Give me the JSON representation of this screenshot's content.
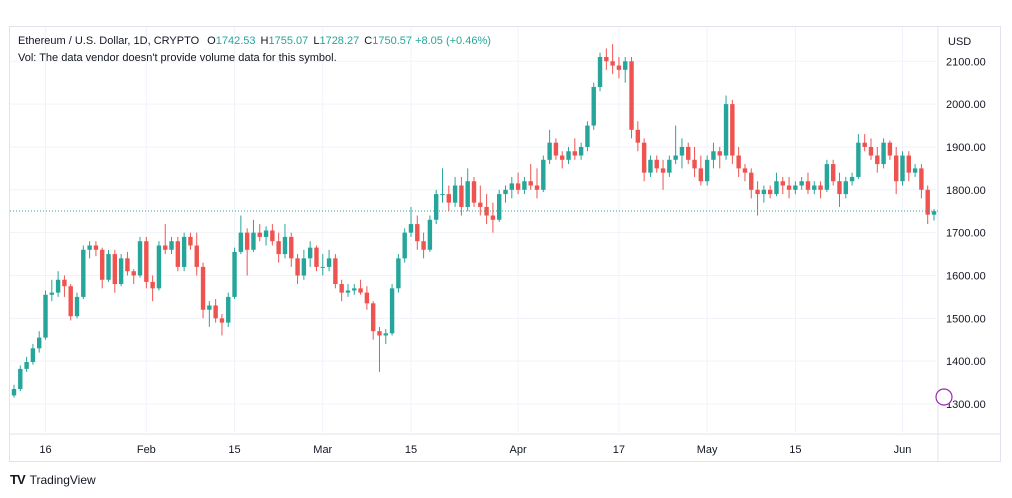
{
  "legend": {
    "symbol": "Ethereum / U.S. Dollar, 1D, CRYPTO",
    "o_key": "O",
    "o_val": "1742.53",
    "h_key": "H",
    "h_val": "1755.07",
    "l_key": "L",
    "l_val": "1728.27",
    "c_key": "C",
    "c_val": "1750.57",
    "change": "+8.05 (+0.46%)",
    "vol_text": "Vol: The data vendor doesn't provide volume data for this symbol."
  },
  "branding": {
    "name": "TradingView",
    "mark": "TV"
  },
  "colors": {
    "up": "#26a69a",
    "down": "#ef5350",
    "grid": "#f0f3fa",
    "axis_text": "#131722",
    "price_line": "#26a69a"
  },
  "chart_data": {
    "type": "candlestick",
    "currency_label": "USD",
    "y_range": [
      1230,
      2180
    ],
    "y_ticks": [
      1300,
      1400,
      1500,
      1600,
      1700,
      1800,
      1900,
      2000,
      2100
    ],
    "y_tick_labels": [
      "1300.00",
      "1400.00",
      "1500.00",
      "1600.00",
      "1700.00",
      "1800.00",
      "1900.00",
      "2000.00",
      "2100.00"
    ],
    "x_ticks": [
      {
        "label": "16",
        "bar": 5
      },
      {
        "label": "Feb",
        "bar": 21
      },
      {
        "label": "15",
        "bar": 35
      },
      {
        "label": "Mar",
        "bar": 49
      },
      {
        "label": "15",
        "bar": 63
      },
      {
        "label": "Apr",
        "bar": 80
      },
      {
        "label": "17",
        "bar": 96
      },
      {
        "label": "May",
        "bar": 110
      },
      {
        "label": "15",
        "bar": 124
      },
      {
        "label": "Jun",
        "bar": 141
      }
    ],
    "current_price": 1750.57,
    "ohlc": [
      [
        1320,
        1345,
        1315,
        1335
      ],
      [
        1335,
        1390,
        1330,
        1382
      ],
      [
        1382,
        1410,
        1375,
        1398
      ],
      [
        1398,
        1440,
        1392,
        1430
      ],
      [
        1430,
        1470,
        1420,
        1455
      ],
      [
        1455,
        1565,
        1450,
        1555
      ],
      [
        1555,
        1590,
        1540,
        1560
      ],
      [
        1560,
        1610,
        1550,
        1590
      ],
      [
        1590,
        1600,
        1550,
        1575
      ],
      [
        1575,
        1580,
        1495,
        1505
      ],
      [
        1505,
        1560,
        1500,
        1550
      ],
      [
        1550,
        1670,
        1545,
        1660
      ],
      [
        1660,
        1680,
        1640,
        1670
      ],
      [
        1670,
        1680,
        1645,
        1660
      ],
      [
        1660,
        1665,
        1570,
        1590
      ],
      [
        1590,
        1660,
        1585,
        1650
      ],
      [
        1650,
        1660,
        1560,
        1580
      ],
      [
        1580,
        1650,
        1575,
        1640
      ],
      [
        1640,
        1655,
        1600,
        1610
      ],
      [
        1610,
        1615,
        1580,
        1600
      ],
      [
        1600,
        1690,
        1595,
        1680
      ],
      [
        1680,
        1690,
        1570,
        1585
      ],
      [
        1585,
        1600,
        1540,
        1570
      ],
      [
        1570,
        1680,
        1565,
        1670
      ],
      [
        1670,
        1720,
        1650,
        1660
      ],
      [
        1660,
        1690,
        1650,
        1680
      ],
      [
        1680,
        1690,
        1610,
        1620
      ],
      [
        1620,
        1700,
        1610,
        1690
      ],
      [
        1690,
        1700,
        1660,
        1670
      ],
      [
        1670,
        1700,
        1600,
        1620
      ],
      [
        1620,
        1630,
        1500,
        1520
      ],
      [
        1520,
        1540,
        1480,
        1530
      ],
      [
        1530,
        1545,
        1490,
        1500
      ],
      [
        1500,
        1510,
        1460,
        1490
      ],
      [
        1490,
        1560,
        1480,
        1550
      ],
      [
        1550,
        1665,
        1545,
        1655
      ],
      [
        1655,
        1740,
        1650,
        1700
      ],
      [
        1700,
        1710,
        1600,
        1660
      ],
      [
        1660,
        1730,
        1655,
        1700
      ],
      [
        1700,
        1720,
        1680,
        1690
      ],
      [
        1690,
        1715,
        1670,
        1705
      ],
      [
        1705,
        1720,
        1670,
        1680
      ],
      [
        1680,
        1700,
        1630,
        1650
      ],
      [
        1650,
        1720,
        1640,
        1690
      ],
      [
        1690,
        1700,
        1620,
        1640
      ],
      [
        1640,
        1650,
        1580,
        1600
      ],
      [
        1600,
        1660,
        1590,
        1640
      ],
      [
        1640,
        1680,
        1620,
        1665
      ],
      [
        1665,
        1670,
        1610,
        1620
      ],
      [
        1620,
        1650,
        1600,
        1620
      ],
      [
        1620,
        1660,
        1610,
        1640
      ],
      [
        1640,
        1650,
        1570,
        1580
      ],
      [
        1580,
        1590,
        1540,
        1560
      ],
      [
        1560,
        1580,
        1550,
        1565
      ],
      [
        1565,
        1580,
        1555,
        1570
      ],
      [
        1570,
        1590,
        1555,
        1560
      ],
      [
        1560,
        1575,
        1520,
        1535
      ],
      [
        1535,
        1540,
        1450,
        1470
      ],
      [
        1470,
        1480,
        1375,
        1460
      ],
      [
        1460,
        1475,
        1440,
        1465
      ],
      [
        1465,
        1580,
        1460,
        1570
      ],
      [
        1570,
        1650,
        1560,
        1640
      ],
      [
        1640,
        1710,
        1630,
        1700
      ],
      [
        1700,
        1760,
        1690,
        1720
      ],
      [
        1720,
        1740,
        1660,
        1680
      ],
      [
        1680,
        1700,
        1640,
        1660
      ],
      [
        1660,
        1740,
        1655,
        1730
      ],
      [
        1730,
        1800,
        1720,
        1790
      ],
      [
        1790,
        1850,
        1770,
        1790
      ],
      [
        1790,
        1810,
        1750,
        1770
      ],
      [
        1770,
        1830,
        1760,
        1810
      ],
      [
        1810,
        1830,
        1740,
        1760
      ],
      [
        1760,
        1850,
        1750,
        1820
      ],
      [
        1820,
        1830,
        1760,
        1770
      ],
      [
        1770,
        1810,
        1740,
        1760
      ],
      [
        1760,
        1790,
        1720,
        1740
      ],
      [
        1740,
        1770,
        1700,
        1730
      ],
      [
        1730,
        1800,
        1725,
        1790
      ],
      [
        1790,
        1810,
        1770,
        1800
      ],
      [
        1800,
        1830,
        1780,
        1815
      ],
      [
        1815,
        1840,
        1790,
        1800
      ],
      [
        1800,
        1830,
        1790,
        1820
      ],
      [
        1820,
        1860,
        1800,
        1810
      ],
      [
        1810,
        1850,
        1780,
        1800
      ],
      [
        1800,
        1880,
        1795,
        1870
      ],
      [
        1870,
        1940,
        1860,
        1910
      ],
      [
        1910,
        1920,
        1870,
        1880
      ],
      [
        1880,
        1890,
        1850,
        1870
      ],
      [
        1870,
        1900,
        1860,
        1890
      ],
      [
        1890,
        1920,
        1870,
        1880
      ],
      [
        1880,
        1910,
        1870,
        1900
      ],
      [
        1900,
        1960,
        1890,
        1950
      ],
      [
        1950,
        2050,
        1940,
        2040
      ],
      [
        2040,
        2120,
        2030,
        2110
      ],
      [
        2110,
        2130,
        2080,
        2100
      ],
      [
        2100,
        2140,
        2070,
        2090
      ],
      [
        2090,
        2110,
        2060,
        2080
      ],
      [
        2080,
        2110,
        2050,
        2100
      ],
      [
        2100,
        2110,
        1920,
        1940
      ],
      [
        1940,
        1960,
        1890,
        1910
      ],
      [
        1910,
        1920,
        1820,
        1840
      ],
      [
        1840,
        1880,
        1830,
        1870
      ],
      [
        1870,
        1880,
        1840,
        1850
      ],
      [
        1850,
        1870,
        1800,
        1840
      ],
      [
        1840,
        1880,
        1830,
        1870
      ],
      [
        1870,
        1950,
        1860,
        1880
      ],
      [
        1880,
        1920,
        1850,
        1900
      ],
      [
        1900,
        1910,
        1860,
        1870
      ],
      [
        1870,
        1900,
        1830,
        1850
      ],
      [
        1850,
        1880,
        1810,
        1820
      ],
      [
        1820,
        1880,
        1810,
        1870
      ],
      [
        1870,
        1910,
        1850,
        1890
      ],
      [
        1890,
        1900,
        1850,
        1880
      ],
      [
        1880,
        2020,
        1870,
        2000
      ],
      [
        2000,
        2010,
        1860,
        1880
      ],
      [
        1880,
        1900,
        1830,
        1850
      ],
      [
        1850,
        1860,
        1820,
        1840
      ],
      [
        1840,
        1850,
        1780,
        1800
      ],
      [
        1800,
        1820,
        1740,
        1790
      ],
      [
        1790,
        1810,
        1770,
        1800
      ],
      [
        1800,
        1810,
        1780,
        1790
      ],
      [
        1790,
        1840,
        1785,
        1820
      ],
      [
        1820,
        1830,
        1790,
        1810
      ],
      [
        1810,
        1830,
        1780,
        1800
      ],
      [
        1800,
        1820,
        1790,
        1810
      ],
      [
        1810,
        1830,
        1800,
        1820
      ],
      [
        1820,
        1840,
        1790,
        1800
      ],
      [
        1800,
        1820,
        1790,
        1810
      ],
      [
        1810,
        1820,
        1780,
        1800
      ],
      [
        1800,
        1870,
        1795,
        1860
      ],
      [
        1860,
        1870,
        1810,
        1820
      ],
      [
        1820,
        1840,
        1760,
        1790
      ],
      [
        1790,
        1830,
        1780,
        1820
      ],
      [
        1820,
        1840,
        1810,
        1830
      ],
      [
        1830,
        1930,
        1825,
        1910
      ],
      [
        1910,
        1930,
        1890,
        1900
      ],
      [
        1900,
        1920,
        1870,
        1880
      ],
      [
        1880,
        1900,
        1840,
        1860
      ],
      [
        1860,
        1920,
        1850,
        1910
      ],
      [
        1910,
        1915,
        1870,
        1880
      ],
      [
        1880,
        1900,
        1790,
        1820
      ],
      [
        1820,
        1890,
        1810,
        1880
      ],
      [
        1880,
        1890,
        1820,
        1840
      ],
      [
        1840,
        1860,
        1830,
        1850
      ],
      [
        1850,
        1860,
        1780,
        1800
      ],
      [
        1800,
        1810,
        1720,
        1742
      ],
      [
        1742,
        1755,
        1728,
        1750
      ]
    ]
  }
}
